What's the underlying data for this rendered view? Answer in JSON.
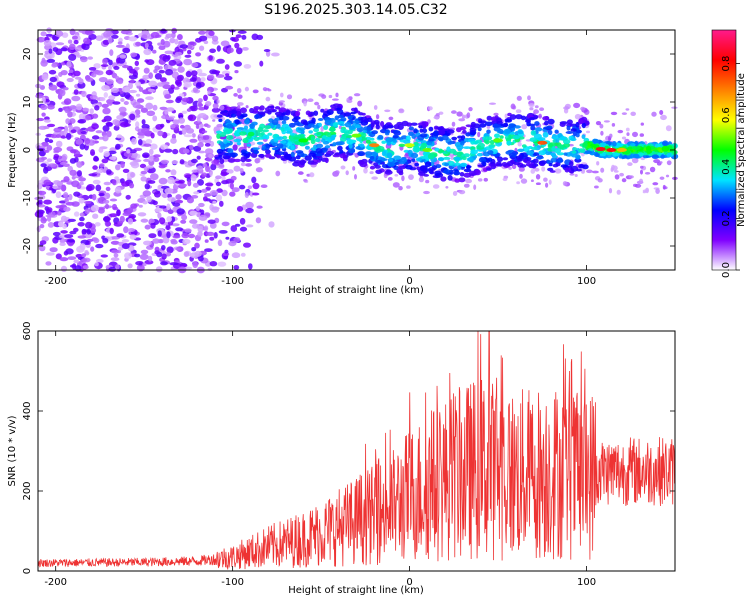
{
  "title": "S196.2025.303.14.05.C32",
  "chart_data": [
    {
      "type": "heatmap",
      "panel": "spectrogram",
      "xlabel": "Height of straight line (km)",
      "ylabel": "Frequency (Hz)",
      "xlim": [
        -210,
        150
      ],
      "ylim": [
        -25,
        25
      ],
      "xticks": [
        "-200",
        "-100",
        "0",
        "100"
      ],
      "xtick_values": [
        -200,
        -100,
        0,
        100
      ],
      "yticks": [
        "-20",
        "-10",
        "0",
        "10",
        "20"
      ],
      "ytick_values": [
        -20,
        -10,
        0,
        10,
        20
      ],
      "ridge": {
        "x": [
          -100,
          -90,
          -80,
          -70,
          -60,
          -50,
          -40,
          -30,
          -20,
          -10,
          0,
          10,
          20,
          30,
          40,
          50,
          60,
          70,
          80,
          90,
          100,
          110,
          120,
          130,
          140,
          150
        ],
        "y": [
          3,
          3,
          4,
          3,
          2,
          3,
          4,
          3,
          1,
          0,
          1,
          0,
          -1,
          -1,
          1,
          2,
          2,
          2,
          1,
          1,
          1,
          0,
          0,
          0,
          0,
          0
        ]
      },
      "colorbar": {
        "label": "Normalized spectral amplitude",
        "range": [
          0,
          0.93
        ],
        "ticks": [
          "0.0",
          "0.2",
          "0.4",
          "0.6",
          "0.8"
        ],
        "tick_values": [
          0,
          0.2,
          0.4,
          0.6,
          0.8
        ],
        "colors": [
          "#ffffff",
          "#8000ff",
          "#0000ff",
          "#00e5ff",
          "#00ff00",
          "#ffff00",
          "#ff8000",
          "#ff0000",
          "#ff1a8c"
        ]
      }
    },
    {
      "type": "line",
      "panel": "snr",
      "xlabel": "Height of straight line (km)",
      "ylabel": "SNR (10 * v/v)",
      "xlim": [
        -210,
        150
      ],
      "ylim": [
        0,
        600
      ],
      "xticks": [
        "-200",
        "-100",
        "0",
        "100"
      ],
      "xtick_values": [
        -200,
        -100,
        0,
        100
      ],
      "yticks": [
        "0",
        "200",
        "400",
        "600"
      ],
      "ytick_values": [
        0,
        200,
        400,
        600
      ],
      "line_color": "#ee3333",
      "envelope": {
        "x": [
          -210,
          -150,
          -120,
          -100,
          -80,
          -60,
          -40,
          -20,
          -10,
          0,
          20,
          40,
          60,
          80,
          100,
          105,
          120,
          150
        ],
        "y": [
          20,
          22,
          25,
          35,
          60,
          80,
          110,
          140,
          160,
          190,
          230,
          260,
          240,
          250,
          230,
          250,
          250,
          250
        ]
      },
      "peak": {
        "x": 45,
        "y": 600
      }
    }
  ]
}
